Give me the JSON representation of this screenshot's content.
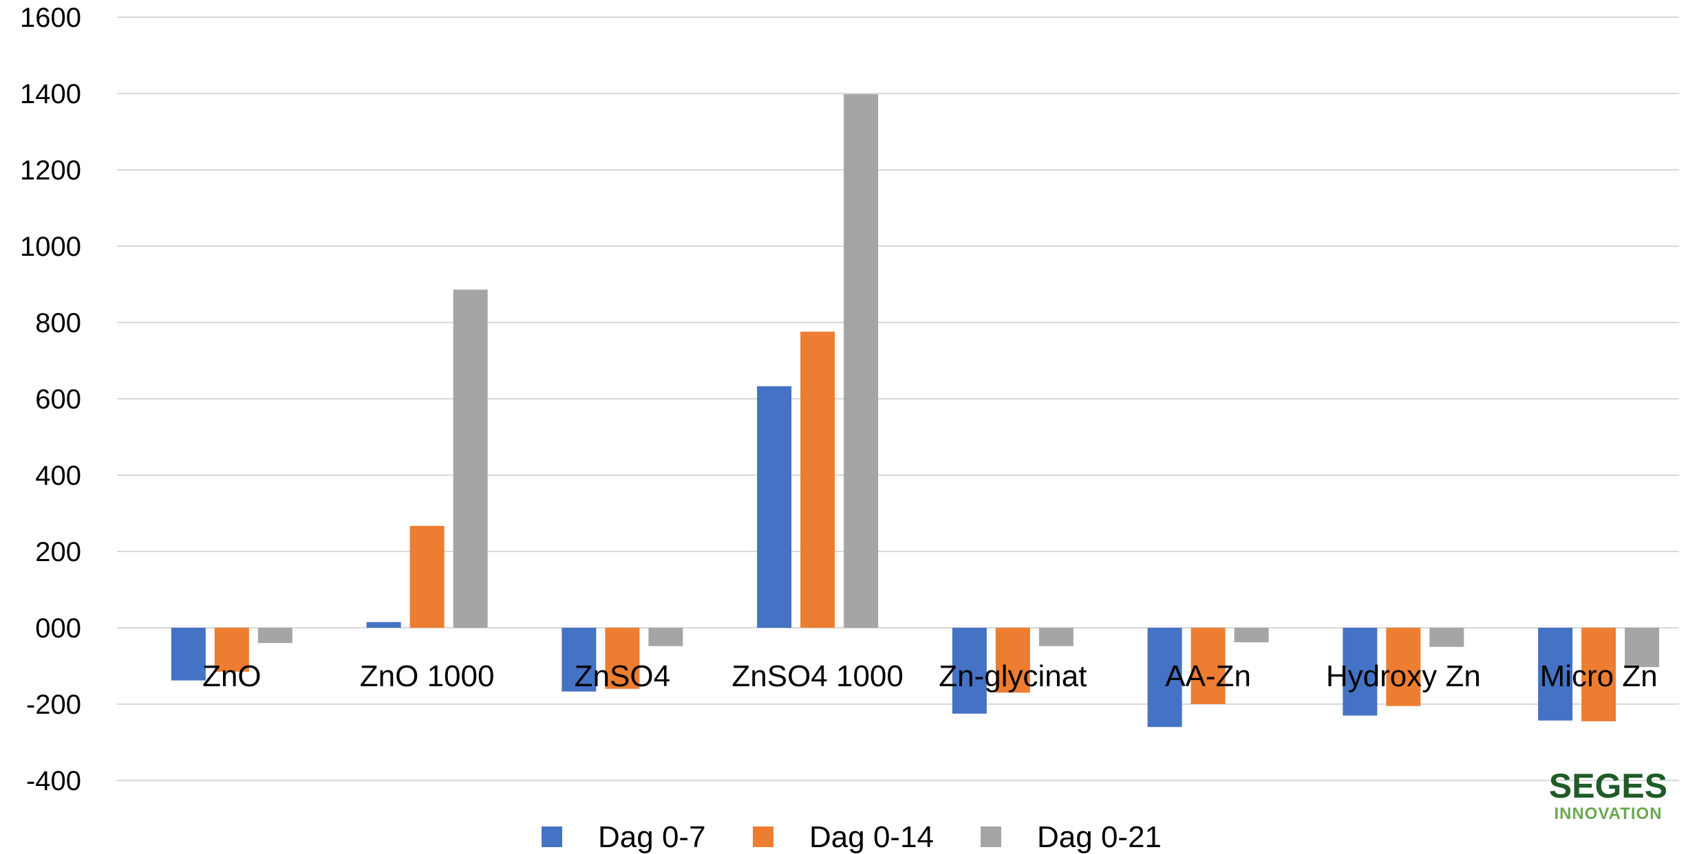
{
  "chart_data": {
    "type": "bar",
    "categories": [
      "ZnO",
      "ZnO 1000",
      "ZnSO4",
      "ZnSO4 1000",
      "Zn-glycinat",
      "AA-Zn",
      "Hydroxy Zn",
      "Micro Zn"
    ],
    "series": [
      {
        "name": "Dag 0-7",
        "color": "#4472c4",
        "values": [
          -138,
          15,
          -167,
          633,
          -225,
          -260,
          -230,
          -243
        ]
      },
      {
        "name": "Dag 0-14",
        "color": "#ed7d31",
        "values": [
          -115,
          267,
          -160,
          776,
          -170,
          -200,
          -205,
          -245
        ]
      },
      {
        "name": "Dag 0-21",
        "color": "#a5a5a5",
        "values": [
          -40,
          886,
          -48,
          1398,
          -48,
          -38,
          -50,
          -103
        ]
      }
    ],
    "ylim": [
      -400,
      1600
    ],
    "yticks": [
      1600,
      1400,
      1200,
      1000,
      800,
      600,
      400,
      200,
      0,
      -200,
      -400
    ],
    "ytick_labels": [
      "1600",
      "1400",
      "1200",
      "1000",
      "800",
      "600",
      "400",
      "200",
      "000",
      "-200",
      "-400"
    ],
    "grid": true,
    "legend_position": "bottom",
    "title": "",
    "xlabel": "",
    "ylabel": ""
  },
  "logo": {
    "main": "SEGES",
    "sub": "INNOVATION"
  }
}
